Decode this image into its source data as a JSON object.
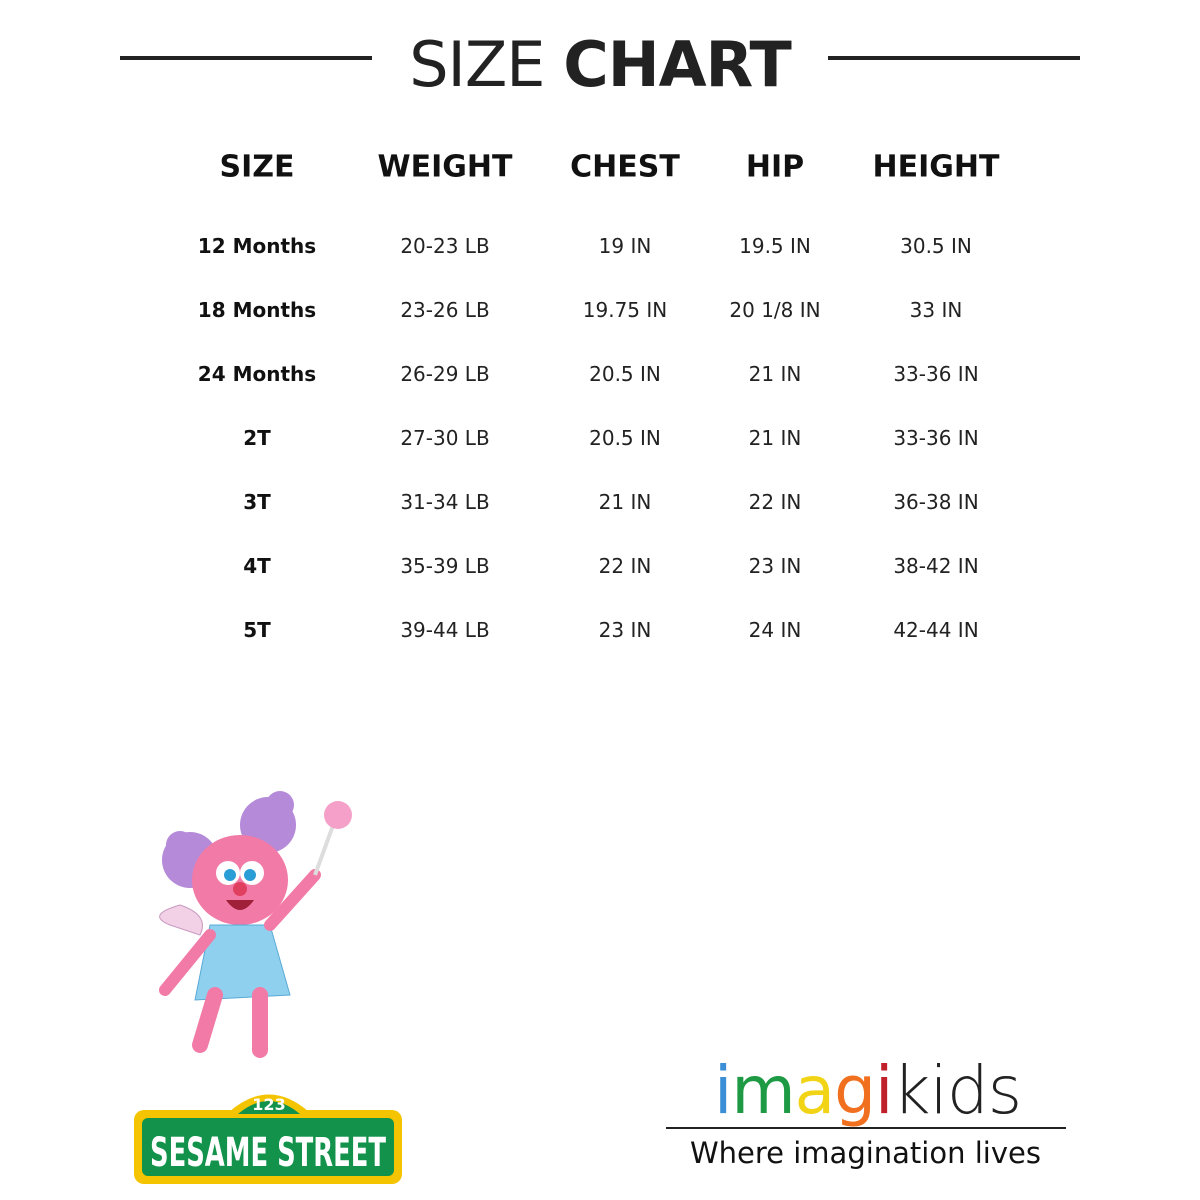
{
  "title": {
    "light": "SIZE ",
    "bold": "CHART"
  },
  "table": {
    "headers": [
      "SIZE",
      "WEIGHT",
      "CHEST",
      "HIP",
      "HEIGHT"
    ],
    "rows": [
      [
        "12 Months",
        "20-23 LB",
        "19 IN",
        "19.5 IN",
        "30.5 IN"
      ],
      [
        "18 Months",
        "23-26 LB",
        "19.75 IN",
        "20 1/8 IN",
        "33 IN"
      ],
      [
        "24 Months",
        "26-29 LB",
        "20.5 IN",
        "21 IN",
        "33-36 IN"
      ],
      [
        "2T",
        "27-30 LB",
        "20.5 IN",
        "21 IN",
        "33-36 IN"
      ],
      [
        "3T",
        "31-34 LB",
        "21 IN",
        "22 IN",
        "36-38 IN"
      ],
      [
        "4T",
        "35-39 LB",
        "22 IN",
        "23 IN",
        "38-42 IN"
      ],
      [
        "5T",
        "39-44 LB",
        "23 IN",
        "24 IN",
        "42-44 IN"
      ]
    ]
  },
  "sesame_logo": {
    "number": "123",
    "text": "SESAME STREET"
  },
  "imagikids_logo": {
    "letters": [
      "i",
      "m",
      "a",
      "g",
      "i"
    ],
    "letter_colors": [
      "#3a8fd6",
      "#1e9a45",
      "#f2d417",
      "#f07020",
      "#c0202a"
    ],
    "suffix": "kids",
    "tagline": "Where imagination lives"
  }
}
